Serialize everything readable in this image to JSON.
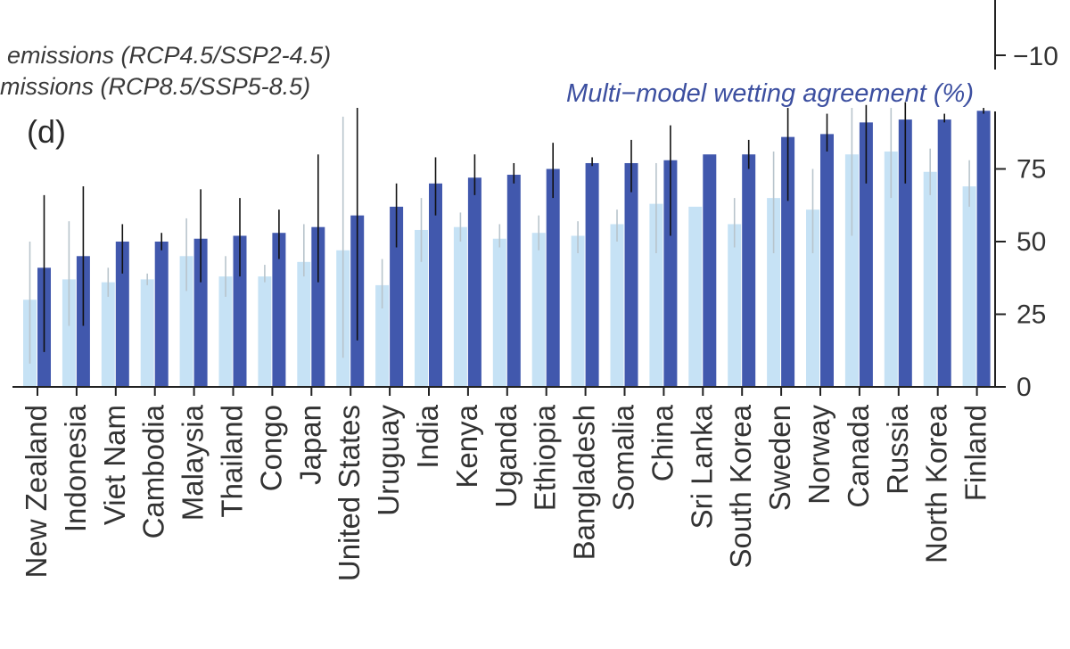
{
  "chart_data": {
    "type": "bar",
    "panel_label": "(d)",
    "legend": [
      "emissions (RCP4.5/SSP2-4.5)",
      "missions (RCP8.5/SSP5-8.5)"
    ],
    "series_title": "Multi−model wetting agreement (%)",
    "top_tick_label": "−10",
    "y_ticks": [
      0,
      25,
      50,
      75
    ],
    "ylim": [
      0,
      95
    ],
    "categories": [
      "New Zealand",
      "Indonesia",
      "Viet Nam",
      "Cambodia",
      "Malaysia",
      "Thailand",
      "Congo",
      "Japan",
      "United States",
      "Uruguay",
      "India",
      "Kenya",
      "Uganda",
      "Ethiopia",
      "Bangladesh",
      "Somalia",
      "China",
      "Sri Lanka",
      "South Korea",
      "Sweden",
      "Norway",
      "Canada",
      "Russia",
      "North Korea",
      "Finland"
    ],
    "series": [
      {
        "name": "RCP4.5/SSP2-4.5",
        "color": "#c6e2f5",
        "values": [
          30,
          37,
          36,
          37,
          45,
          38,
          38,
          43,
          47,
          35,
          54,
          55,
          51,
          53,
          52,
          56,
          63,
          62,
          56,
          65,
          61,
          80,
          81,
          74,
          69
        ],
        "error_low": [
          8,
          21,
          31,
          35,
          33,
          31,
          36,
          38,
          10,
          27,
          43,
          50,
          48,
          47,
          46,
          50,
          46,
          62,
          48,
          46,
          46,
          52,
          65,
          66,
          62
        ],
        "error_high": [
          50,
          57,
          41,
          39,
          58,
          45,
          42,
          56,
          93,
          44,
          65,
          60,
          56,
          59,
          57,
          61,
          77,
          62,
          65,
          81,
          75,
          96,
          96,
          82,
          78
        ]
      },
      {
        "name": "RCP8.5/SSP5-8.5",
        "color": "#4158ad",
        "values": [
          41,
          45,
          50,
          50,
          51,
          52,
          53,
          55,
          59,
          62,
          70,
          72,
          73,
          75,
          77,
          77,
          78,
          80,
          80,
          86,
          87,
          91,
          92,
          92,
          95
        ],
        "error_low": [
          12,
          21,
          39,
          47,
          36,
          38,
          44,
          36,
          16,
          48,
          59,
          66,
          70,
          65,
          76,
          67,
          52,
          80,
          75,
          64,
          81,
          70,
          70,
          91,
          94
        ],
        "error_high": [
          66,
          69,
          56,
          53,
          68,
          65,
          61,
          80,
          96,
          70,
          79,
          80,
          77,
          84,
          79,
          85,
          90,
          80,
          85,
          96,
          94,
          97,
          98,
          94,
          96
        ]
      }
    ]
  }
}
